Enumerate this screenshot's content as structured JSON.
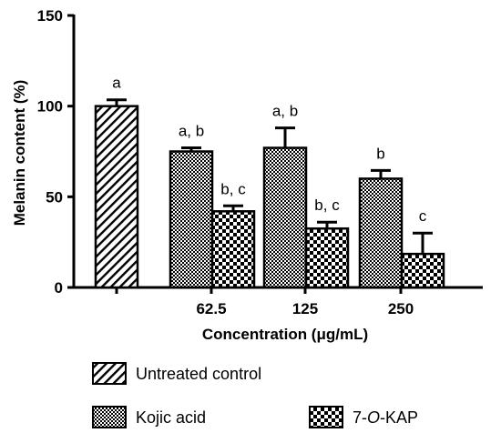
{
  "chart_data": {
    "type": "bar",
    "ylabel": "Melanin content (%)",
    "xlabel": "Concentration (μg/mL)",
    "ylim": [
      0,
      150
    ],
    "yticks": [
      "0",
      "50",
      "100",
      "150"
    ],
    "grid": false,
    "legend_position": "bottom",
    "groups": [
      {
        "label": "",
        "bars": [
          {
            "series": "Untreated control",
            "value": 100,
            "error": 3.5,
            "annotation": "a"
          }
        ]
      },
      {
        "label": "62.5",
        "bars": [
          {
            "series": "Kojic acid",
            "value": 75,
            "error": 2,
            "annotation": "a, b"
          },
          {
            "series": "7-O-KAP",
            "value": 42,
            "error": 3,
            "annotation": "b, c"
          }
        ]
      },
      {
        "label": "125",
        "bars": [
          {
            "series": "Kojic acid",
            "value": 77,
            "error": 11,
            "annotation": "a, b"
          },
          {
            "series": "7-O-KAP",
            "value": 32.5,
            "error": 3.5,
            "annotation": "b, c"
          }
        ]
      },
      {
        "label": "250",
        "bars": [
          {
            "series": "Kojic acid",
            "value": 60,
            "error": 4.5,
            "annotation": "b"
          },
          {
            "series": "7-O-KAP",
            "value": 18.5,
            "error": 11.5,
            "annotation": "c"
          }
        ]
      }
    ],
    "series": [
      {
        "name": "Untreated control",
        "pattern": "diagonal-hatch"
      },
      {
        "name": "Kojic acid",
        "pattern": "fine-checker"
      },
      {
        "name": "7-O-KAP",
        "pattern": "coarse-checker"
      }
    ]
  }
}
